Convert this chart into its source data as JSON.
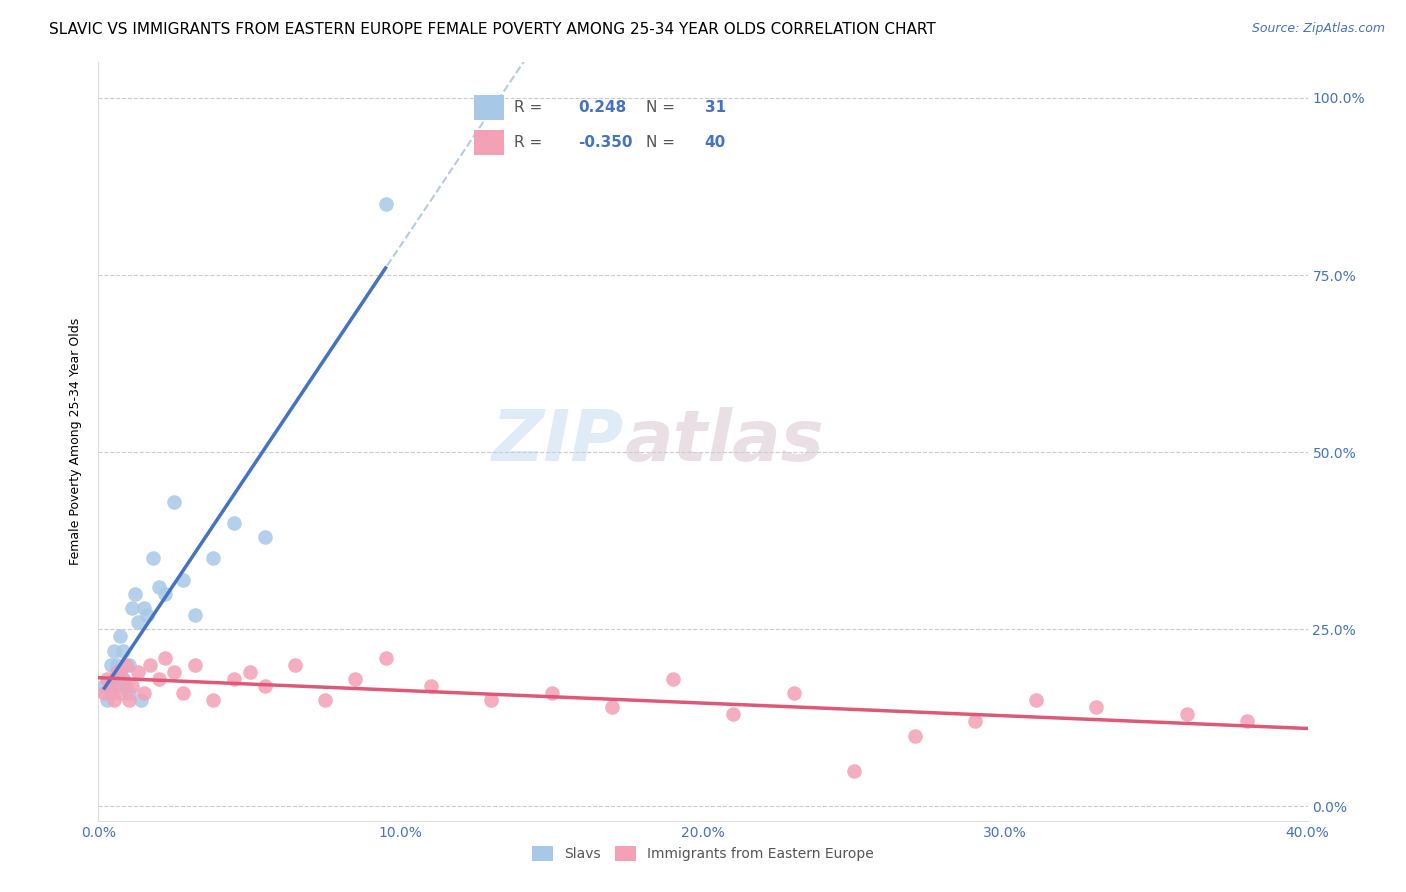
{
  "title": "SLAVIC VS IMMIGRANTS FROM EASTERN EUROPE FEMALE POVERTY AMONG 25-34 YEAR OLDS CORRELATION CHART",
  "source": "Source: ZipAtlas.com",
  "ylabel": "Female Poverty Among 25-34 Year Olds",
  "xlim": [
    0.0,
    0.4
  ],
  "ylim": [
    -0.02,
    1.05
  ],
  "xticks": [
    0.0,
    0.1,
    0.2,
    0.3,
    0.4
  ],
  "yticks": [
    0.0,
    0.25,
    0.5,
    0.75,
    1.0
  ],
  "ytick_labels_right": [
    "0.0%",
    "25.0%",
    "50.0%",
    "75.0%",
    "100.0%"
  ],
  "xtick_labels": [
    "0.0%",
    "10.0%",
    "20.0%",
    "30.0%",
    "40.0%"
  ],
  "color_slavs": "#a8c8e8",
  "color_immig": "#f4a0b5",
  "color_slavs_line": "#4472c4",
  "color_immig_line": "#e05878",
  "color_dashed": "#b0cce8",
  "R_slavs": 0.248,
  "N_slavs": 31,
  "R_immig": -0.35,
  "N_immig": 40,
  "slavs_x": [
    0.002,
    0.003,
    0.004,
    0.004,
    0.005,
    0.005,
    0.006,
    0.006,
    0.007,
    0.007,
    0.008,
    0.008,
    0.009,
    0.01,
    0.01,
    0.011,
    0.012,
    0.013,
    0.014,
    0.015,
    0.016,
    0.018,
    0.02,
    0.022,
    0.025,
    0.028,
    0.032,
    0.038,
    0.045,
    0.055,
    0.095
  ],
  "slavs_y": [
    0.17,
    0.15,
    0.2,
    0.16,
    0.22,
    0.18,
    0.2,
    0.17,
    0.19,
    0.24,
    0.22,
    0.18,
    0.17,
    0.2,
    0.16,
    0.28,
    0.3,
    0.26,
    0.15,
    0.28,
    0.27,
    0.35,
    0.31,
    0.3,
    0.43,
    0.32,
    0.27,
    0.35,
    0.4,
    0.38,
    0.85
  ],
  "immig_x": [
    0.002,
    0.003,
    0.004,
    0.005,
    0.006,
    0.007,
    0.008,
    0.009,
    0.01,
    0.011,
    0.013,
    0.015,
    0.017,
    0.02,
    0.022,
    0.025,
    0.028,
    0.032,
    0.038,
    0.045,
    0.05,
    0.055,
    0.065,
    0.075,
    0.085,
    0.095,
    0.11,
    0.13,
    0.15,
    0.17,
    0.19,
    0.21,
    0.23,
    0.25,
    0.27,
    0.29,
    0.31,
    0.33,
    0.36,
    0.38
  ],
  "immig_y": [
    0.16,
    0.18,
    0.17,
    0.15,
    0.19,
    0.16,
    0.18,
    0.2,
    0.15,
    0.17,
    0.19,
    0.16,
    0.2,
    0.18,
    0.21,
    0.19,
    0.16,
    0.2,
    0.15,
    0.18,
    0.19,
    0.17,
    0.2,
    0.15,
    0.18,
    0.21,
    0.17,
    0.15,
    0.16,
    0.14,
    0.18,
    0.13,
    0.16,
    0.05,
    0.1,
    0.12,
    0.15,
    0.14,
    0.13,
    0.12
  ],
  "watermark_zip": "ZIP",
  "watermark_atlas": "atlas",
  "background_color": "#ffffff",
  "grid_color": "#cccccc",
  "tick_color": "#4472c4",
  "title_fontsize": 11,
  "axis_label_fontsize": 9,
  "tick_fontsize": 10,
  "legend_fontsize": 11
}
